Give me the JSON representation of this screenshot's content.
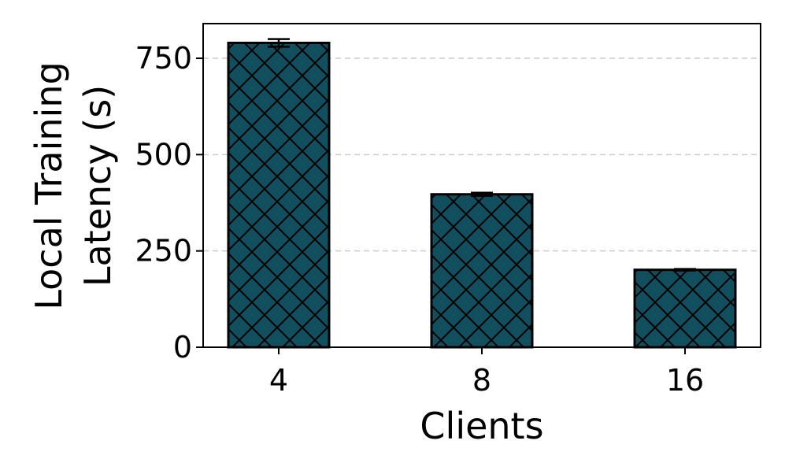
{
  "chart_data": {
    "type": "bar",
    "categories": [
      "4",
      "8",
      "16"
    ],
    "values": [
      790,
      397,
      201
    ],
    "errors": [
      10,
      4,
      2
    ],
    "xlabel": "Clients",
    "ylabel_lines": [
      "Local Training",
      "Latency (s)"
    ],
    "ylim": [
      0,
      840
    ],
    "yticks": [
      "0",
      "250",
      "500",
      "750"
    ],
    "ytick_values": [
      0,
      250,
      500,
      750
    ],
    "grid": "y-dashed",
    "colors": {
      "bar_fill": "#114f5e",
      "bar_edge": "#000000",
      "grid": "#cccccc"
    },
    "hatch": "crosshatch"
  }
}
